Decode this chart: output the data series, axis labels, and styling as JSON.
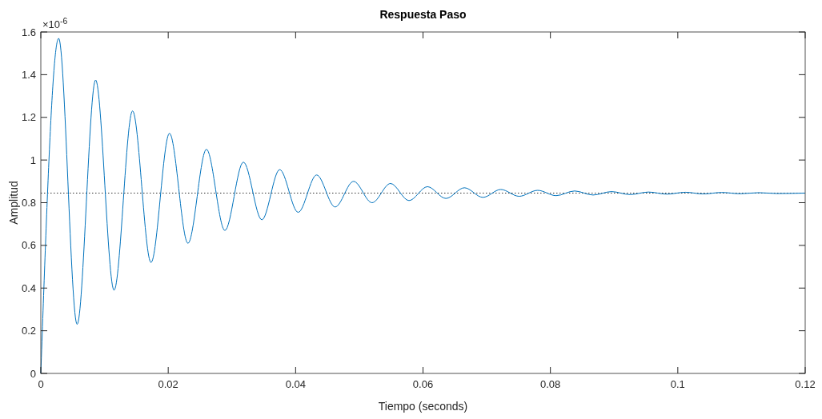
{
  "chart_data": {
    "type": "line",
    "title": "Respuesta Paso",
    "xlabel": "Tiempo (seconds)",
    "ylabel": "Amplitud",
    "annotations": [
      "×10$^{-6}$"
    ],
    "xlim": [
      0,
      0.12
    ],
    "xticks": [
      0,
      0.02,
      0.04,
      0.06,
      0.08,
      0.1,
      0.12
    ],
    "ylim": [
      0,
      1.6
    ],
    "yticks": [
      0,
      0.2,
      0.4,
      0.6,
      0.8,
      1,
      1.2,
      1.4,
      1.6
    ],
    "grid": false,
    "marker": "none",
    "line_style": "solid",
    "ref_lines": [
      {
        "axis": "y",
        "value": 0.845,
        "color": "#333333",
        "line_style": "dotted"
      }
    ],
    "series": [
      {
        "color": "#0072bd",
        "x": [
          0,
          0.0028,
          0.0057,
          0.0086,
          0.0115,
          0.0144,
          0.0173,
          0.0202,
          0.0231,
          0.026,
          0.0289,
          0.0318,
          0.0347,
          0.0375,
          0.0404,
          0.0433,
          0.0462,
          0.0491,
          0.052,
          0.0549,
          0.0578,
          0.0607,
          0.0636,
          0.0665,
          0.0694,
          0.0722,
          0.0751,
          0.078,
          0.0809,
          0.0838,
          0.0867,
          0.0896,
          0.0925,
          0.0954,
          0.0983,
          0.1012,
          0.104,
          0.1069,
          0.1098,
          0.1127,
          0.1156,
          0.12
        ],
        "values": [
          0,
          1.57,
          0.23,
          1.375,
          0.39,
          1.23,
          0.52,
          1.125,
          0.61,
          1.05,
          0.67,
          0.99,
          0.72,
          0.955,
          0.755,
          0.93,
          0.78,
          0.9,
          0.8,
          0.89,
          0.81,
          0.875,
          0.82,
          0.87,
          0.825,
          0.862,
          0.83,
          0.858,
          0.833,
          0.855,
          0.836,
          0.852,
          0.838,
          0.85,
          0.84,
          0.849,
          0.841,
          0.848,
          0.842,
          0.847,
          0.843,
          0.845
        ]
      }
    ]
  }
}
